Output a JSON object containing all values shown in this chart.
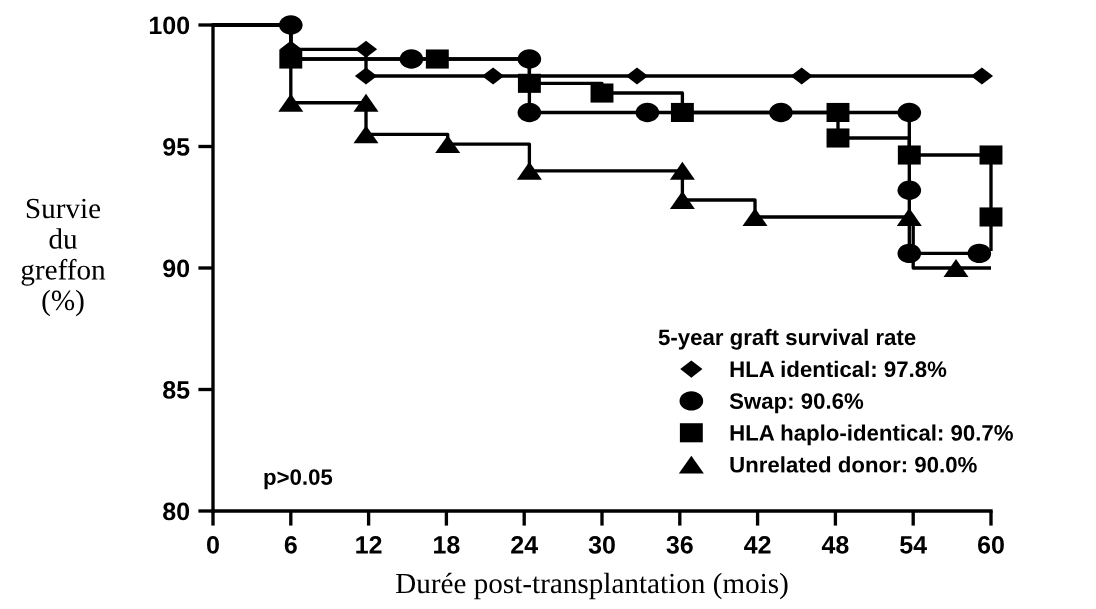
{
  "chart_data": {
    "type": "step",
    "xlabel": "Durée post-transplantation (mois)",
    "ylabel": "Survie du greffon (%)",
    "legend_title": "5-year graft survival rate",
    "annotations": [
      "p>0.05"
    ],
    "xlim": [
      0,
      60
    ],
    "xticks": [
      0,
      6,
      12,
      18,
      24,
      30,
      36,
      42,
      48,
      54,
      60
    ],
    "ylim": [
      80,
      100
    ],
    "yticks": [
      80,
      85,
      90,
      95,
      100
    ],
    "legend": "bottom right",
    "line_style": "solid",
    "series": [
      {
        "color": "#000000",
        "x": [
          0,
          6,
          11.8,
          59.3
        ],
        "values": [
          100,
          99.0,
          97.9,
          97.9
        ]
      },
      {
        "type": "scatter",
        "name": "HLA identical: 97.8%",
        "color": "#000000",
        "marker": "diamond",
        "x": [
          6,
          11.8,
          11.8,
          21.6,
          32.7,
          45.4,
          59.3
        ],
        "values": [
          99.0,
          99.0,
          97.9,
          97.9,
          97.9,
          97.9,
          97.9
        ]
      },
      {
        "color": "#000000",
        "x": [
          0,
          6,
          24.4,
          53.7,
          59.1
        ],
        "values": [
          100,
          98.6,
          96.4,
          90.6,
          90.6
        ]
      },
      {
        "type": "scatter",
        "name": "Swap: 90.6%",
        "color": "#000000",
        "marker": "circle",
        "x": [
          6,
          15.3,
          24.4,
          24.4,
          33.5,
          43.8,
          53.7,
          53.7,
          53.7,
          59.1
        ],
        "values": [
          100,
          98.6,
          98.6,
          96.4,
          96.4,
          96.4,
          96.4,
          93.2,
          90.6,
          90.6
        ]
      },
      {
        "color": "#000000",
        "x": [
          0,
          6,
          24.4,
          30.0,
          36.2,
          48.2,
          53.7,
          60,
          60
        ],
        "values": [
          100,
          98.6,
          97.6,
          97.2,
          96.4,
          95.35,
          94.65,
          92.1,
          90.7
        ]
      },
      {
        "type": "scatter",
        "name": "HLA haplo-identical: 90.7%",
        "color": "#000000",
        "marker": "square",
        "x": [
          6,
          17.3,
          24.4,
          30.0,
          36.2,
          48.2,
          48.2,
          53.7,
          60,
          60
        ],
        "values": [
          98.6,
          98.6,
          97.6,
          97.2,
          96.4,
          96.4,
          95.35,
          94.65,
          94.65,
          92.1
        ]
      },
      {
        "color": "#000000",
        "x": [
          0,
          6,
          11.8,
          18.1,
          24.4,
          36.2,
          41.8,
          54,
          60
        ],
        "values": [
          100,
          96.8,
          95.5,
          95.1,
          94.0,
          92.8,
          92.1,
          90.0,
          90.0
        ]
      },
      {
        "type": "scatter",
        "name": "Unrelated donor: 90.0%",
        "color": "#000000",
        "marker": "triangle",
        "x": [
          6,
          11.8,
          11.8,
          18.1,
          24.4,
          36.2,
          36.2,
          41.8,
          53.7,
          57.3
        ],
        "values": [
          96.8,
          96.8,
          95.5,
          95.1,
          94.0,
          94.0,
          92.8,
          92.1,
          92.1,
          90.0
        ]
      }
    ]
  }
}
